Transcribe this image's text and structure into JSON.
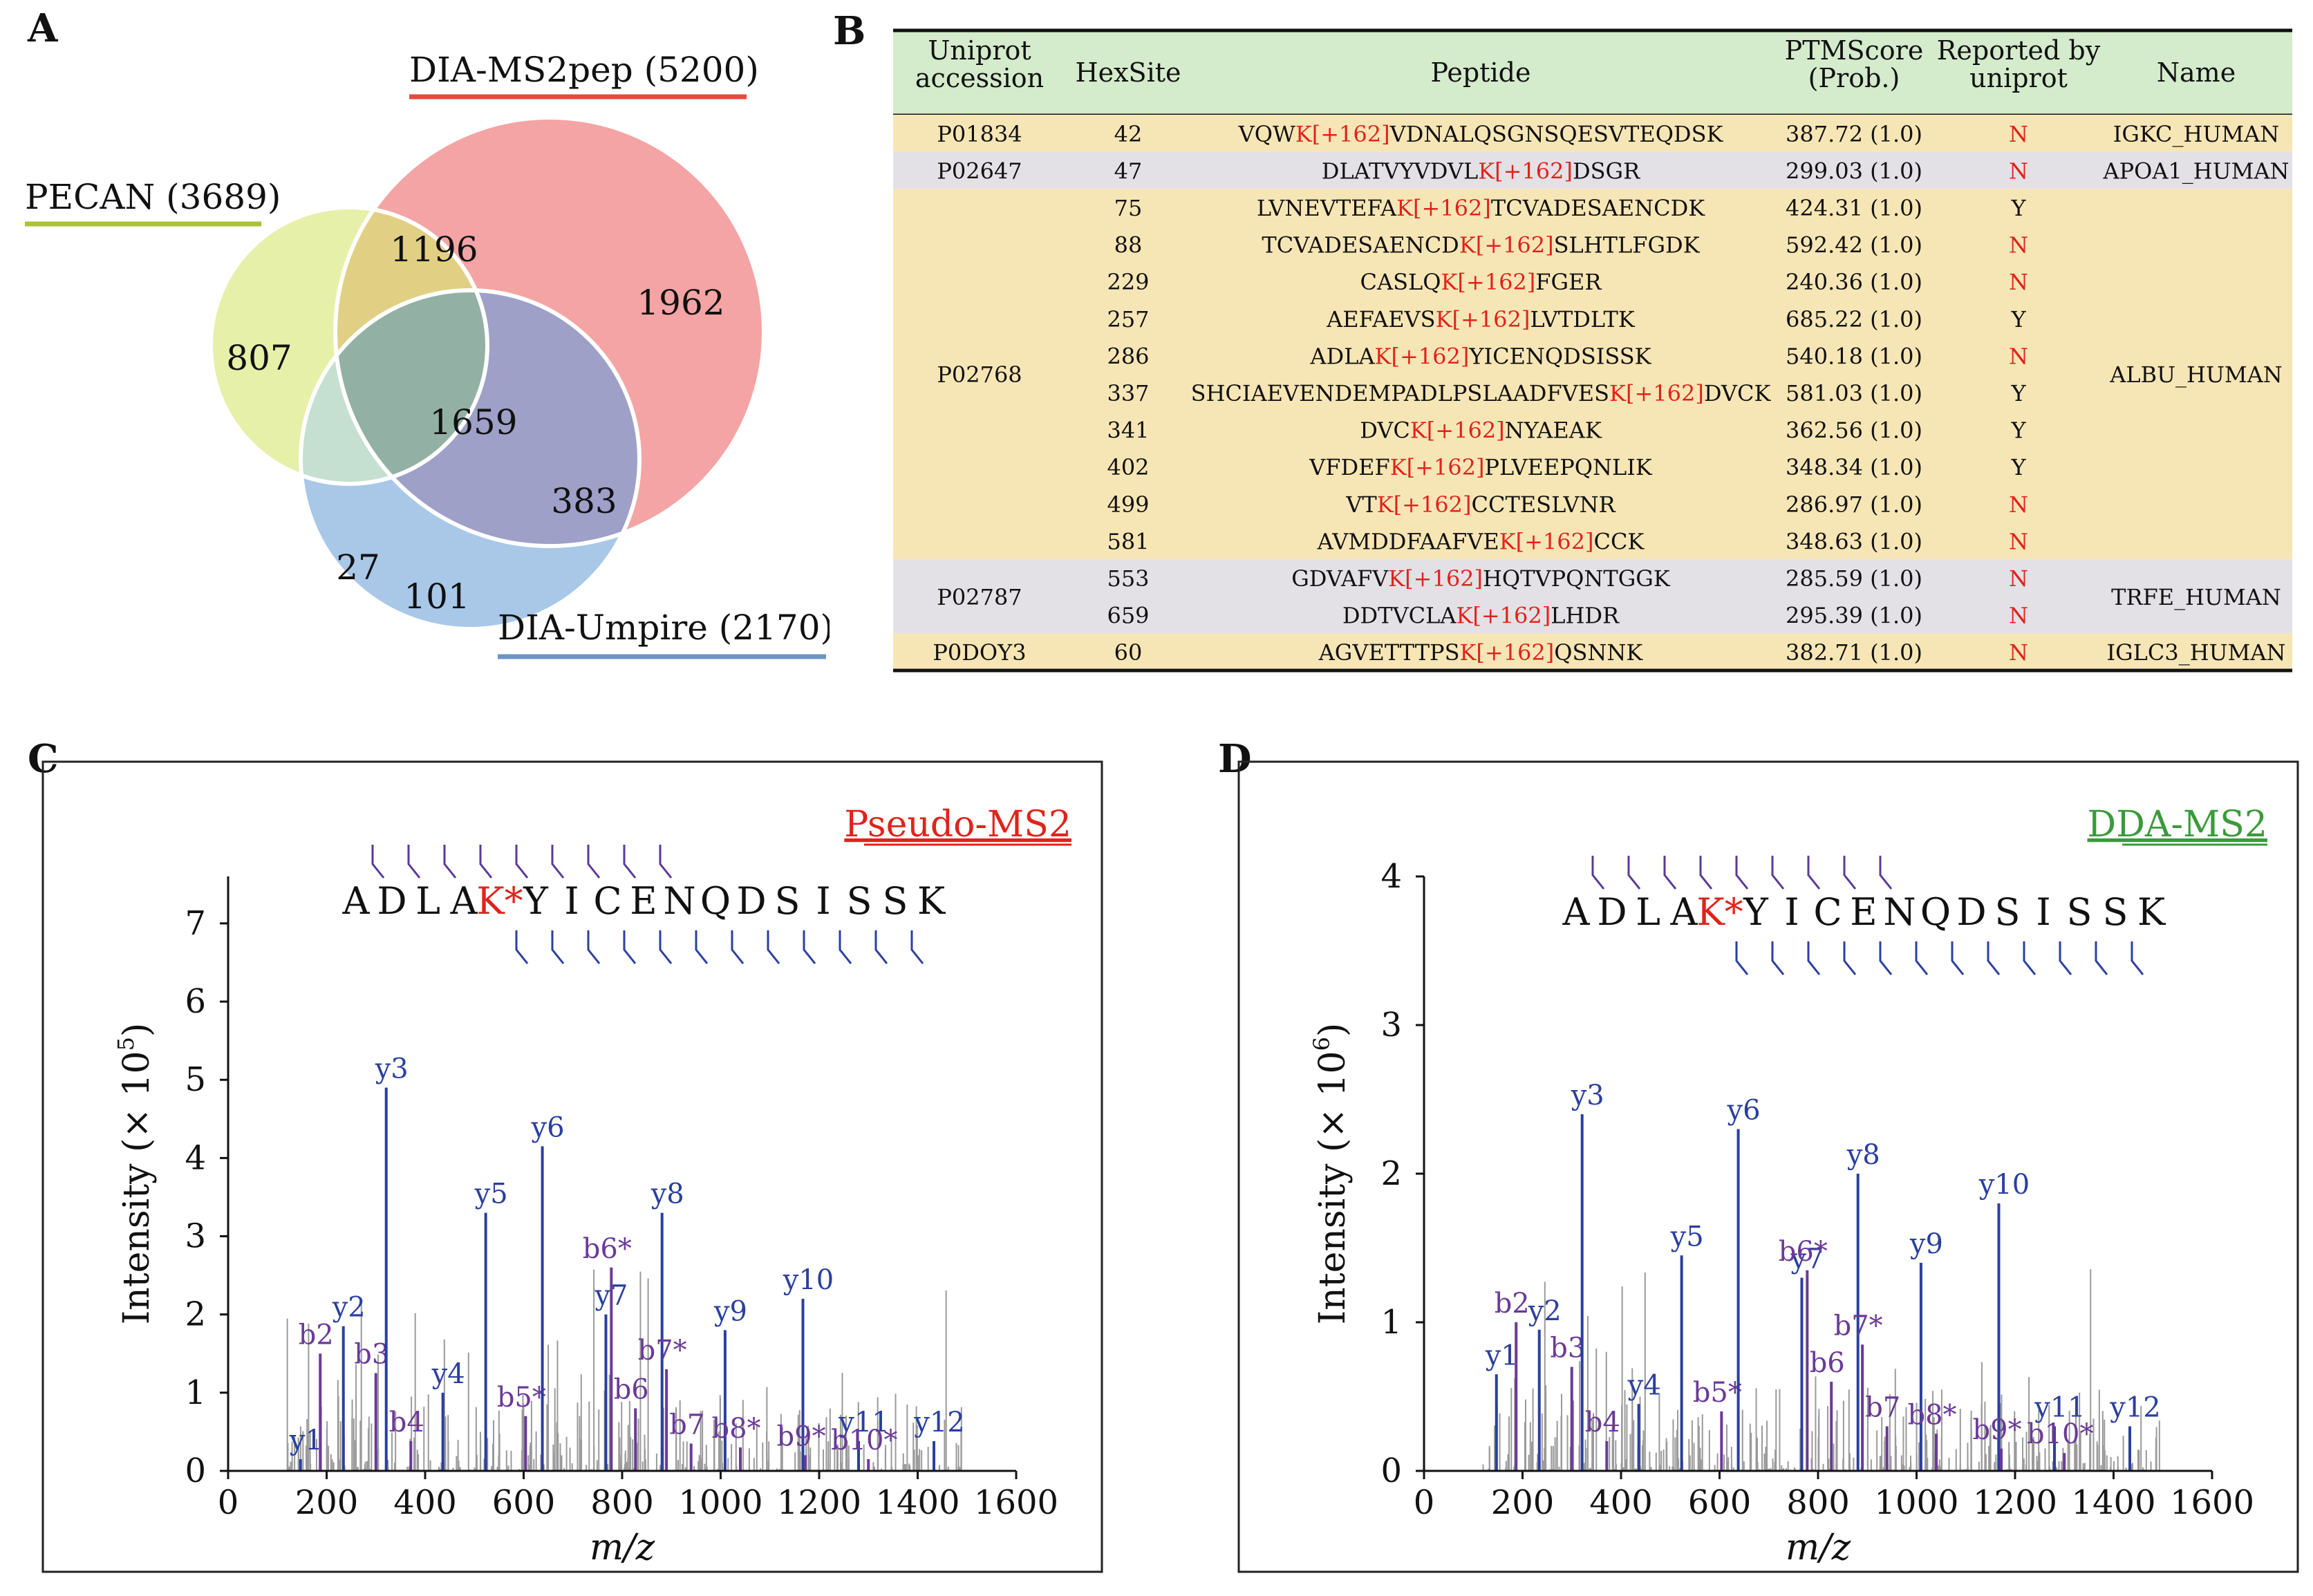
{
  "panel_letters": {
    "a": "A",
    "b": "B",
    "c": "C",
    "d": "D"
  },
  "venn": {
    "labels": {
      "ms2pep": "DIA-MS2pep (5200)",
      "pecan": "PECAN (3689)",
      "umpire": "DIA-Umpire  (2170)"
    },
    "regions": {
      "pecan_only": "807",
      "pecan_ms2pep": "1196",
      "ms2pep_only": "1962",
      "all_three": "1659",
      "ms2pep_umpire": "383",
      "pecan_umpire": "27",
      "umpire_only": "101"
    },
    "colors": {
      "pecan": "#e6f0a8",
      "ms2pep": "#f4a4a4",
      "umpire": "#a9c8e8",
      "pecan_ms2pep": "#e1d084",
      "center": "#93b0a5",
      "ms2pep_umpire": "#9ea0c8",
      "pecan_umpire": "#c5dfd0",
      "underline_ms2pep": "#e8493c",
      "underline_pecan": "#a9c23a",
      "underline_umpire": "#6b94c9"
    }
  },
  "table": {
    "headers": [
      "Uniprot\naccession",
      "HexSite",
      "Peptide",
      "PTMScore\n(Prob.)",
      "Reported by\nuniprot",
      "Name"
    ],
    "groups": [
      {
        "accession": "P01834",
        "name": "IGKC_HUMAN",
        "rows": [
          {
            "site": "42",
            "pep_pre": "VQW",
            "pep_mod": "K[+162]",
            "pep_post": "VDNALQSGNSQESVTEQDSK",
            "score": "387.72 (1.0)",
            "reported": "N"
          }
        ]
      },
      {
        "accession": "P02647",
        "name": "APOA1_HUMAN",
        "rows": [
          {
            "site": "47",
            "pep_pre": "DLATVYVDVL",
            "pep_mod": "K[+162]",
            "pep_post": "DSGR",
            "score": "299.03 (1.0)",
            "reported": "N"
          }
        ]
      },
      {
        "accession": "P02768",
        "name": "ALBU_HUMAN",
        "rows": [
          {
            "site": "75",
            "pep_pre": "LVNEVTEFA",
            "pep_mod": "K[+162]",
            "pep_post": "TCVADESAENCDK",
            "score": "424.31 (1.0)",
            "reported": "Y"
          },
          {
            "site": "88",
            "pep_pre": "TCVADESAENCD",
            "pep_mod": "K[+162]",
            "pep_post": "SLHTLFGDK",
            "score": "592.42 (1.0)",
            "reported": "N"
          },
          {
            "site": "229",
            "pep_pre": "CASLQ",
            "pep_mod": "K[+162]",
            "pep_post": "FGER",
            "score": "240.36 (1.0)",
            "reported": "N"
          },
          {
            "site": "257",
            "pep_pre": "AEFAEVS",
            "pep_mod": "K[+162]",
            "pep_post": "LVTDLTK",
            "score": "685.22 (1.0)",
            "reported": "Y"
          },
          {
            "site": "286",
            "pep_pre": "ADLA",
            "pep_mod": "K[+162]",
            "pep_post": "YICENQDSISSK",
            "score": "540.18 (1.0)",
            "reported": "N"
          },
          {
            "site": "337",
            "pep_pre": "SHCIAEVENDEMPADLPSLAADFVES",
            "pep_mod": "K[+162]",
            "pep_post": "DVCK",
            "score": "581.03 (1.0)",
            "reported": "Y"
          },
          {
            "site": "341",
            "pep_pre": "DVC",
            "pep_mod": "K[+162]",
            "pep_post": "NYAEAK",
            "score": "362.56 (1.0)",
            "reported": "Y"
          },
          {
            "site": "402",
            "pep_pre": "VFDEF",
            "pep_mod": "K[+162]",
            "pep_post": "PLVEEPQNLIK",
            "score": "348.34 (1.0)",
            "reported": "Y"
          },
          {
            "site": "499",
            "pep_pre": "VT",
            "pep_mod": "K[+162]",
            "pep_post": "CCTESLVNR",
            "score": "286.97 (1.0)",
            "reported": "N"
          },
          {
            "site": "581",
            "pep_pre": "AVMDDFAAFVE",
            "pep_mod": "K[+162]",
            "pep_post": "CCK",
            "score": "348.63 (1.0)",
            "reported": "N"
          }
        ]
      },
      {
        "accession": "P02787",
        "name": "TRFE_HUMAN",
        "rows": [
          {
            "site": "553",
            "pep_pre": "GDVAFV",
            "pep_mod": "K[+162]",
            "pep_post": "HQTVPQNTGGK",
            "score": "285.59 (1.0)",
            "reported": "N"
          },
          {
            "site": "659",
            "pep_pre": "DDTVCLA",
            "pep_mod": "K[+162]",
            "pep_post": "LHDR",
            "score": "295.39 (1.0)",
            "reported": "N"
          }
        ]
      },
      {
        "accession": "P0DOY3",
        "name": "IGLC3_HUMAN",
        "rows": [
          {
            "site": "60",
            "pep_pre": "AGVETTTPS",
            "pep_mod": "K[+162]",
            "pep_post": "QSNNK",
            "score": "382.71 (1.0)",
            "reported": "N"
          }
        ]
      }
    ],
    "colors": {
      "header": "#d4ebcc",
      "band_a": "#f7e6b5",
      "band_b": "#e3e1e6",
      "mod": "#e0231c"
    }
  },
  "spectra": [
    {
      "id": "C",
      "panel_label": "Pseudo-MS2",
      "label_color": "#e0231c",
      "ylabel": "Intensity (× 10",
      "ylabel_exp": "5",
      "ylabel_close": ")",
      "xlabel": "m/z",
      "xlim": [
        0,
        1600
      ],
      "ylim": [
        0,
        7.6
      ],
      "yticks": [
        0,
        1,
        2,
        3,
        4,
        5,
        6,
        7
      ],
      "xticks": [
        0,
        200,
        400,
        600,
        800,
        1000,
        1200,
        1400,
        1600
      ],
      "sequence": [
        "A",
        "D",
        "L",
        "A",
        "K*",
        "Y",
        "I",
        "C",
        "E",
        "N",
        "Q",
        "D",
        "S",
        "I",
        "S",
        "S",
        "K"
      ],
      "mod_index": 4,
      "b_marks": 9,
      "y_marks": 12,
      "peaks": [
        {
          "mz": 147,
          "intensity": 0.15,
          "label": "y1",
          "type": "y"
        },
        {
          "mz": 187,
          "intensity": 1.5,
          "label": "b2",
          "type": "b"
        },
        {
          "mz": 234,
          "intensity": 1.85,
          "label": "y2",
          "type": "y"
        },
        {
          "mz": 300,
          "intensity": 1.25,
          "label": "b3",
          "type": "b"
        },
        {
          "mz": 321,
          "intensity": 4.9,
          "label": "y3",
          "type": "y"
        },
        {
          "mz": 371,
          "intensity": 0.38,
          "label": "b4",
          "type": "b"
        },
        {
          "mz": 436,
          "intensity": 1.0,
          "label": "y4",
          "type": "y"
        },
        {
          "mz": 523,
          "intensity": 3.3,
          "label": "y5",
          "type": "y"
        },
        {
          "mz": 604,
          "intensity": 0.7,
          "label": "b5*",
          "type": "b"
        },
        {
          "mz": 638,
          "intensity": 4.15,
          "label": "y6",
          "type": "y"
        },
        {
          "mz": 767,
          "intensity": 2.0,
          "label": "y7",
          "type": "y"
        },
        {
          "mz": 778,
          "intensity": 2.6,
          "label": "b6*",
          "type": "b"
        },
        {
          "mz": 827,
          "intensity": 0.8,
          "label": "b6",
          "type": "b"
        },
        {
          "mz": 881,
          "intensity": 3.3,
          "label": "y8",
          "type": "y"
        },
        {
          "mz": 890,
          "intensity": 1.3,
          "label": "b7*",
          "type": "b"
        },
        {
          "mz": 940,
          "intensity": 0.35,
          "label": "b7",
          "type": "b"
        },
        {
          "mz": 1009,
          "intensity": 1.8,
          "label": "y9",
          "type": "y"
        },
        {
          "mz": 1040,
          "intensity": 0.3,
          "label": "b8*",
          "type": "b"
        },
        {
          "mz": 1167,
          "intensity": 2.2,
          "label": "y10",
          "type": "y"
        },
        {
          "mz": 1172,
          "intensity": 0.2,
          "label": "b9*",
          "type": "b"
        },
        {
          "mz": 1280,
          "intensity": 0.38,
          "label": "y11",
          "type": "y"
        },
        {
          "mz": 1300,
          "intensity": 0.15,
          "label": "b10*",
          "type": "b"
        },
        {
          "mz": 1433,
          "intensity": 0.38,
          "label": "y12",
          "type": "y"
        }
      ]
    },
    {
      "id": "D",
      "panel_label": "DDA-MS2",
      "label_color": "#3a9a3a",
      "ylabel": "Intensity (× 10",
      "ylabel_exp": "6",
      "ylabel_close": ")",
      "xlabel": "m/z",
      "xlim": [
        0,
        1600
      ],
      "ylim": [
        0,
        4.0
      ],
      "yticks": [
        0,
        1,
        2,
        3,
        4
      ],
      "xticks": [
        0,
        200,
        400,
        600,
        800,
        1000,
        1200,
        1400,
        1600
      ],
      "sequence": [
        "A",
        "D",
        "L",
        "A",
        "K*",
        "Y",
        "I",
        "C",
        "E",
        "N",
        "Q",
        "D",
        "S",
        "I",
        "S",
        "S",
        "K"
      ],
      "mod_index": 4,
      "b_marks": 9,
      "y_marks": 12,
      "peaks": [
        {
          "mz": 147,
          "intensity": 0.65,
          "label": "y1",
          "type": "y"
        },
        {
          "mz": 187,
          "intensity": 1.0,
          "label": "b2",
          "type": "b"
        },
        {
          "mz": 234,
          "intensity": 0.95,
          "label": "y2",
          "type": "y"
        },
        {
          "mz": 300,
          "intensity": 0.7,
          "label": "b3",
          "type": "b"
        },
        {
          "mz": 321,
          "intensity": 2.4,
          "label": "y3",
          "type": "y"
        },
        {
          "mz": 371,
          "intensity": 0.2,
          "label": "b4",
          "type": "b"
        },
        {
          "mz": 436,
          "intensity": 0.45,
          "label": "y4",
          "type": "y"
        },
        {
          "mz": 523,
          "intensity": 1.45,
          "label": "y5",
          "type": "y"
        },
        {
          "mz": 604,
          "intensity": 0.4,
          "label": "b5*",
          "type": "b"
        },
        {
          "mz": 638,
          "intensity": 2.3,
          "label": "y6",
          "type": "y"
        },
        {
          "mz": 767,
          "intensity": 1.3,
          "label": "y7",
          "type": "y"
        },
        {
          "mz": 778,
          "intensity": 1.35,
          "label": "b6*",
          "type": "b"
        },
        {
          "mz": 827,
          "intensity": 0.6,
          "label": "b6",
          "type": "b"
        },
        {
          "mz": 881,
          "intensity": 2.0,
          "label": "y8",
          "type": "y"
        },
        {
          "mz": 890,
          "intensity": 0.85,
          "label": "b7*",
          "type": "b"
        },
        {
          "mz": 940,
          "intensity": 0.3,
          "label": "b7",
          "type": "b"
        },
        {
          "mz": 1009,
          "intensity": 1.4,
          "label": "y9",
          "type": "y"
        },
        {
          "mz": 1040,
          "intensity": 0.25,
          "label": "b8*",
          "type": "b"
        },
        {
          "mz": 1167,
          "intensity": 1.8,
          "label": "y10",
          "type": "y"
        },
        {
          "mz": 1172,
          "intensity": 0.15,
          "label": "b9*",
          "type": "b"
        },
        {
          "mz": 1280,
          "intensity": 0.3,
          "label": "y11",
          "type": "y"
        },
        {
          "mz": 1300,
          "intensity": 0.12,
          "label": "b10*",
          "type": "b"
        },
        {
          "mz": 1433,
          "intensity": 0.3,
          "label": "y12",
          "type": "y"
        }
      ]
    }
  ]
}
